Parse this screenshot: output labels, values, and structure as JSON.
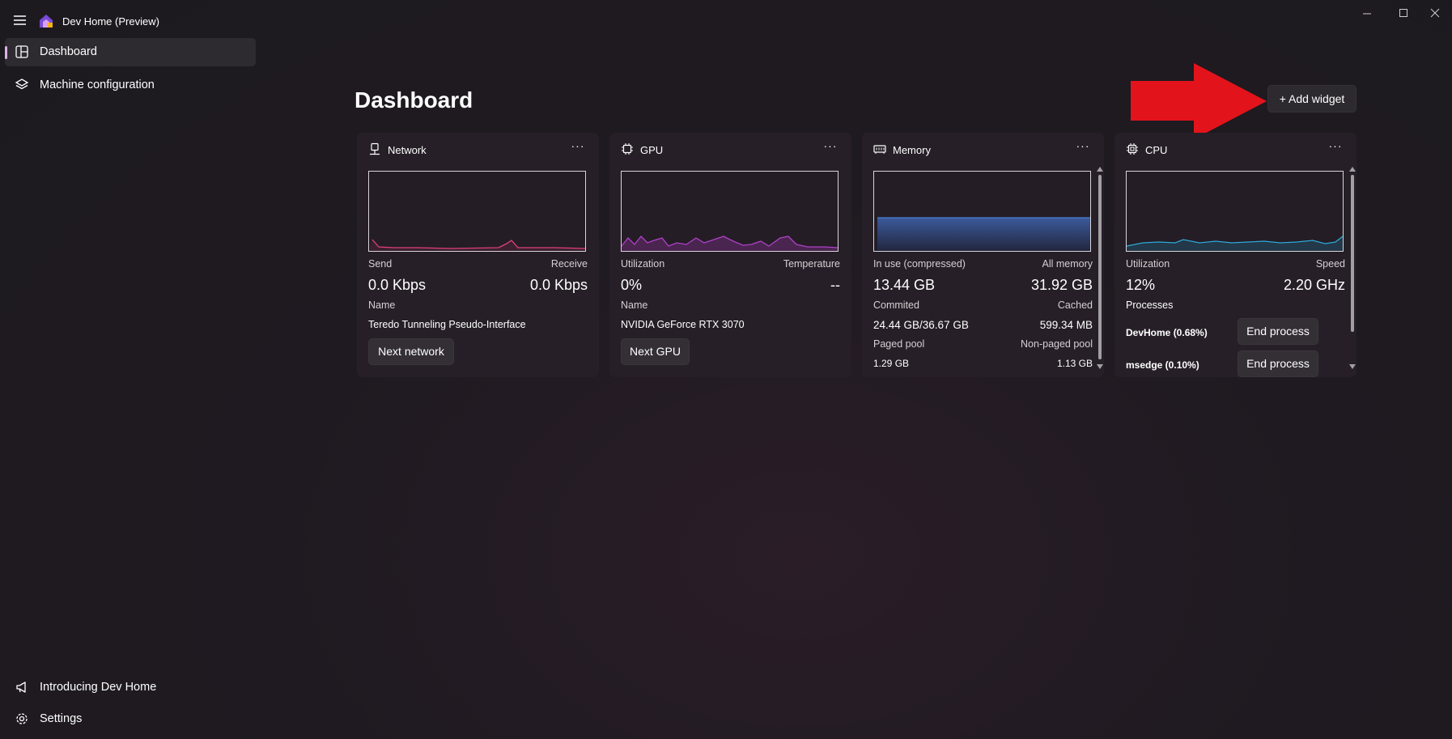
{
  "app": {
    "title": "Dev Home (Preview)"
  },
  "nav": {
    "items": [
      {
        "label": "Dashboard",
        "icon": "dashboard-icon",
        "selected": true
      },
      {
        "label": "Machine configuration",
        "icon": "layers-icon",
        "selected": false
      }
    ],
    "footer": [
      {
        "label": "Introducing Dev Home",
        "icon": "megaphone-icon"
      },
      {
        "label": "Settings",
        "icon": "gear-icon"
      }
    ]
  },
  "page": {
    "title": "Dashboard",
    "add_widget_label": "+ Add widget"
  },
  "widgets": {
    "network": {
      "title": "Network",
      "more": "···",
      "send_label": "Send",
      "receive_label": "Receive",
      "send_value": "0.0 Kbps",
      "receive_value": "0.0 Kbps",
      "name_label": "Name",
      "name_value": "Teredo Tunneling Pseudo-Interface",
      "button": "Next network",
      "line_color": "#e0407a"
    },
    "gpu": {
      "title": "GPU",
      "more": "···",
      "util_label": "Utilization",
      "temp_label": "Temperature",
      "util_value": "0%",
      "temp_value": "--",
      "name_label": "Name",
      "name_value": "NVIDIA GeForce RTX 3070",
      "button": "Next GPU",
      "line_color": "#b040c8"
    },
    "memory": {
      "title": "Memory",
      "more": "···",
      "inuse_label": "In use (compressed)",
      "all_label": "All memory",
      "inuse_value": "13.44 GB",
      "all_value": "31.92 GB",
      "committed_label": "Commited",
      "cached_label": "Cached",
      "committed_value": "24.44 GB/36.67 GB",
      "cached_value": "599.34 MB",
      "paged_label": "Paged pool",
      "nonpaged_label": "Non-paged pool",
      "paged_value": "1.29 GB",
      "nonpaged_value": "1.13 GB",
      "line_color": "#4a7fd0"
    },
    "cpu": {
      "title": "CPU",
      "more": "···",
      "util_label": "Utilization",
      "speed_label": "Speed",
      "util_value": "12%",
      "speed_value": "2.20 GHz",
      "processes_label": "Processes",
      "processes": [
        {
          "name": "DevHome (0.68%)",
          "button": "End process"
        },
        {
          "name": "msedge (0.10%)",
          "button": "End process"
        }
      ],
      "line_color": "#2ea8d8"
    }
  },
  "colors": {
    "accent": "#d9b3e6",
    "arrow": "#e3131b",
    "background": "#1f1a20"
  }
}
